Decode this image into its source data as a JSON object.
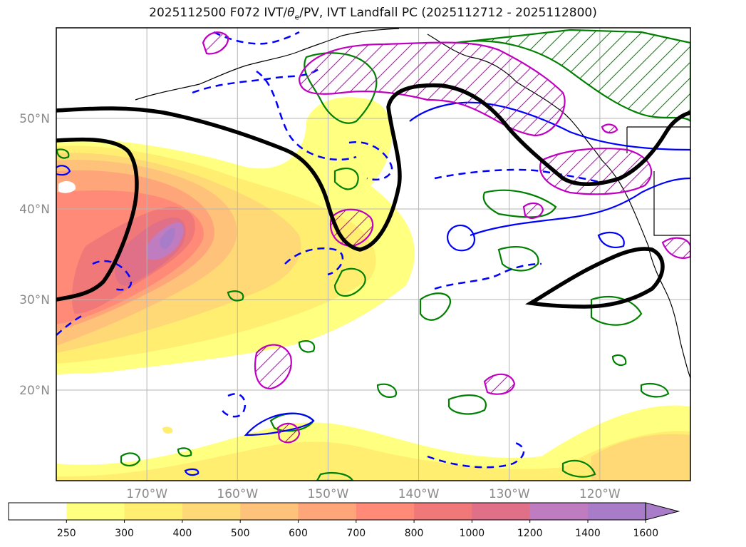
{
  "title_main": "2025112500 F072 IVT/",
  "title_theta": "θ",
  "title_sub": "e",
  "title_rest": "/PV, IVT Landfall PC (2025112712 - 2025112800)",
  "chart_data": {
    "type": "contour map",
    "title": "2025112500 F072 IVT/θe/PV, IVT Landfall PC (2025112712 - 2025112800)",
    "lon_range": [
      -180,
      -110
    ],
    "lat_range": [
      10,
      60
    ],
    "grid": true,
    "x_ticks": [
      {
        "value": -170,
        "label": "170°W"
      },
      {
        "value": -160,
        "label": "160°W"
      },
      {
        "value": -150,
        "label": "150°W"
      },
      {
        "value": -140,
        "label": "140°W"
      },
      {
        "value": -130,
        "label": "130°W"
      },
      {
        "value": -120,
        "label": "120°W"
      }
    ],
    "y_ticks": [
      {
        "value": 20,
        "label": "20°N"
      },
      {
        "value": 30,
        "label": "30°N"
      },
      {
        "value": 40,
        "label": "40°N"
      },
      {
        "value": 50,
        "label": "50°N"
      }
    ],
    "colorbar": {
      "levels": [
        250,
        300,
        400,
        500,
        600,
        700,
        800,
        1000,
        1200,
        1400,
        1600
      ],
      "labels": [
        "250",
        "300",
        "400",
        "500",
        "600",
        "700",
        "800",
        "1000",
        "1200",
        "1400",
        "1600"
      ],
      "colors": [
        "#ffffff",
        "#ffff80",
        "#ffee70",
        "#ffd975",
        "#ffc27a",
        "#ffa57a",
        "#ff8a78",
        "#f07878",
        "#e07088",
        "#c07cc0",
        "#a87cc8"
      ],
      "extend": "max"
    },
    "overlays": [
      {
        "color": "#000000",
        "style": "solid"
      },
      {
        "color": "#0000ff",
        "style": "solid"
      },
      {
        "color": "#0000ff",
        "style": "dashed"
      },
      {
        "color": "#008000",
        "style": "solid"
      },
      {
        "color": "#c000c0",
        "style": "solid",
        "hatched": true
      }
    ]
  }
}
